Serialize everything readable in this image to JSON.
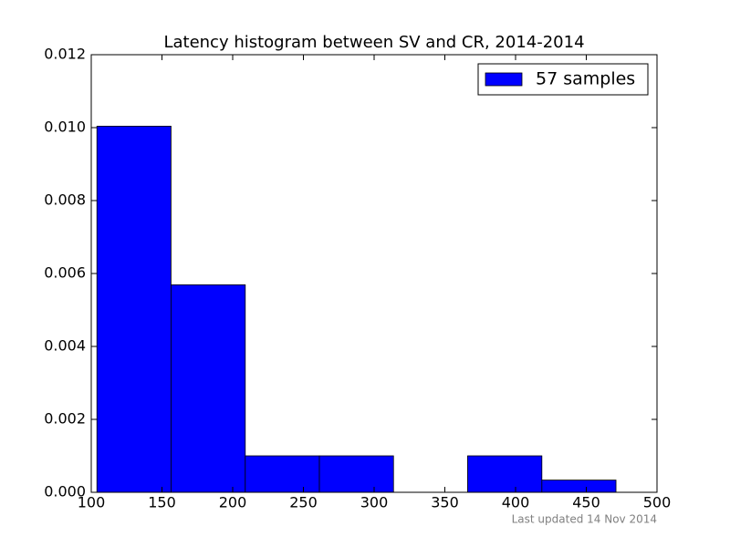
{
  "chart_data": {
    "type": "histogram",
    "title": "Latency histogram between SV and CR, 2014-2014",
    "bins": [
      104,
      156.4,
      208.9,
      261.3,
      313.7,
      366.1,
      418.6,
      471
    ],
    "series": [
      {
        "name": "57 samples",
        "color": "#0000ff",
        "values": [
          0.01004,
          0.00569,
          0.001,
          0.001,
          0,
          0.001,
          0.000335
        ]
      }
    ],
    "xlim": [
      100,
      500
    ],
    "xticks": [
      100,
      150,
      200,
      250,
      300,
      350,
      400,
      450,
      500
    ],
    "ylim": [
      0,
      0.012
    ],
    "yticks": [
      {
        "value": 0,
        "label": "0.000"
      },
      {
        "value": 0.002,
        "label": "0.002"
      },
      {
        "value": 0.004,
        "label": "0.004"
      },
      {
        "value": 0.006,
        "label": "0.006"
      },
      {
        "value": 0.008,
        "label": "0.008"
      },
      {
        "value": 0.01,
        "label": "0.010"
      },
      {
        "value": 0.012,
        "label": "0.012"
      }
    ],
    "legend": "upper right",
    "annotation": "Last updated 14 Nov 2014"
  }
}
